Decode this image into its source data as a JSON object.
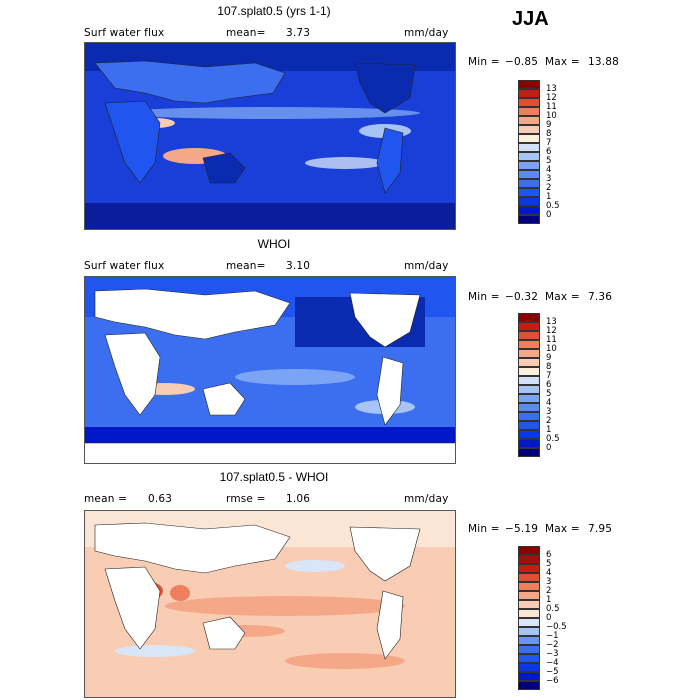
{
  "season": "JJA",
  "panels": [
    {
      "title": "107.splat0.5 (yrs 1-1)",
      "left_label": "Surf water flux",
      "mid_label": "mean=",
      "mid_value": "3.73",
      "units": "mm/day",
      "min_label": "Min =",
      "min_value": "−0.85",
      "max_label": "Max =",
      "max_value": "13.88"
    },
    {
      "title": "WHOI",
      "left_label": "Surf water flux",
      "mid_label": "mean=",
      "mid_value": "3.10",
      "units": "mm/day",
      "min_label": "Min =",
      "min_value": "−0.32",
      "max_label": "Max =",
      "max_value": "7.36"
    },
    {
      "title": "107.splat0.5 - WHOI",
      "left_label": "mean =",
      "left_value": "0.63",
      "mid_label": "rmse =",
      "mid_value": "1.06",
      "units": "mm/day",
      "min_label": "Min =",
      "min_value": "−5.19",
      "max_label": "Max =",
      "max_value": "7.95"
    }
  ],
  "chart_data": [
    {
      "type": "heatmap",
      "title": "107.splat0.5 (yrs 1-1)",
      "variable": "Surf water flux",
      "units": "mm/day",
      "mean": 3.73,
      "min": -0.85,
      "max": 13.88,
      "colorbar_levels": [
        "0",
        "0.5",
        "1",
        "2",
        "3",
        "4",
        "5",
        "6",
        "7",
        "8",
        "9",
        "10",
        "11",
        "12",
        "13"
      ],
      "colorbar_colors": [
        "#00007f",
        "#0018c8",
        "#0838e6",
        "#2155f0",
        "#3c6ff0",
        "#5a8af2",
        "#7ba4f4",
        "#a6c4f6",
        "#d2e0f8",
        "#fbf0dc",
        "#f8cdb3",
        "#f4a888",
        "#ee7e5c",
        "#e24e33",
        "#c41e14",
        "#8c0000"
      ]
    },
    {
      "type": "heatmap",
      "title": "WHOI",
      "variable": "Surf water flux",
      "units": "mm/day",
      "mean": 3.1,
      "min": -0.32,
      "max": 7.36,
      "colorbar_levels": [
        "0",
        "0.5",
        "1",
        "2",
        "3",
        "4",
        "5",
        "6",
        "7",
        "8",
        "9",
        "10",
        "11",
        "12",
        "13"
      ],
      "colorbar_colors": [
        "#00007f",
        "#0018c8",
        "#0838e6",
        "#2155f0",
        "#3c6ff0",
        "#5a8af2",
        "#7ba4f4",
        "#a6c4f6",
        "#d2e0f8",
        "#fbf0dc",
        "#f8cdb3",
        "#f4a888",
        "#ee7e5c",
        "#e24e33",
        "#c41e14",
        "#8c0000"
      ]
    },
    {
      "type": "heatmap",
      "title": "107.splat0.5 - WHOI",
      "units": "mm/day",
      "mean": 0.63,
      "rmse": 1.06,
      "min": -5.19,
      "max": 7.95,
      "colorbar_levels": [
        "−6",
        "−5",
        "−4",
        "−3",
        "−2",
        "−1",
        "−0.5",
        "0",
        "0.5",
        "1",
        "2",
        "3",
        "4",
        "5",
        "6"
      ],
      "colorbar_colors": [
        "#00007f",
        "#0018c8",
        "#0838e6",
        "#2155f0",
        "#3c6ff0",
        "#6a96f2",
        "#a6c4f6",
        "#d9e6fa",
        "#fbe6d6",
        "#f8cdb3",
        "#f4a888",
        "#ee7e5c",
        "#e24e33",
        "#c41e14",
        "#a01008",
        "#8c0000"
      ]
    }
  ]
}
